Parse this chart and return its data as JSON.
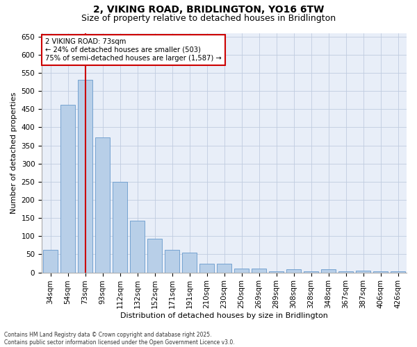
{
  "title_line1": "2, VIKING ROAD, BRIDLINGTON, YO16 6TW",
  "title_line2": "Size of property relative to detached houses in Bridlington",
  "xlabel": "Distribution of detached houses by size in Bridlington",
  "ylabel": "Number of detached properties",
  "categories": [
    "34sqm",
    "54sqm",
    "73sqm",
    "93sqm",
    "112sqm",
    "132sqm",
    "152sqm",
    "171sqm",
    "191sqm",
    "210sqm",
    "230sqm",
    "250sqm",
    "269sqm",
    "289sqm",
    "308sqm",
    "328sqm",
    "348sqm",
    "367sqm",
    "387sqm",
    "406sqm",
    "426sqm"
  ],
  "values": [
    62,
    463,
    530,
    373,
    250,
    142,
    93,
    63,
    55,
    25,
    25,
    10,
    10,
    3,
    8,
    3,
    9,
    3,
    5,
    4,
    3
  ],
  "bar_color": "#b8cfe8",
  "bar_edge_color": "#6699cc",
  "vline_color": "#cc0000",
  "annotation_line1": "2 VIKING ROAD: 73sqm",
  "annotation_line2": "← 24% of detached houses are smaller (503)",
  "annotation_line3": "75% of semi-detached houses are larger (1,587) →",
  "annotation_box_color": "#cc0000",
  "ylim": [
    0,
    660
  ],
  "yticks": [
    0,
    50,
    100,
    150,
    200,
    250,
    300,
    350,
    400,
    450,
    500,
    550,
    600,
    650
  ],
  "footer_line1": "Contains HM Land Registry data © Crown copyright and database right 2025.",
  "footer_line2": "Contains public sector information licensed under the Open Government Licence v3.0.",
  "bg_color": "#ffffff",
  "plot_bg_color": "#e8eef8",
  "title_fontsize": 10,
  "subtitle_fontsize": 9,
  "axis_label_fontsize": 8,
  "tick_fontsize": 7.5,
  "bar_width": 0.85,
  "highlight_index": 2
}
